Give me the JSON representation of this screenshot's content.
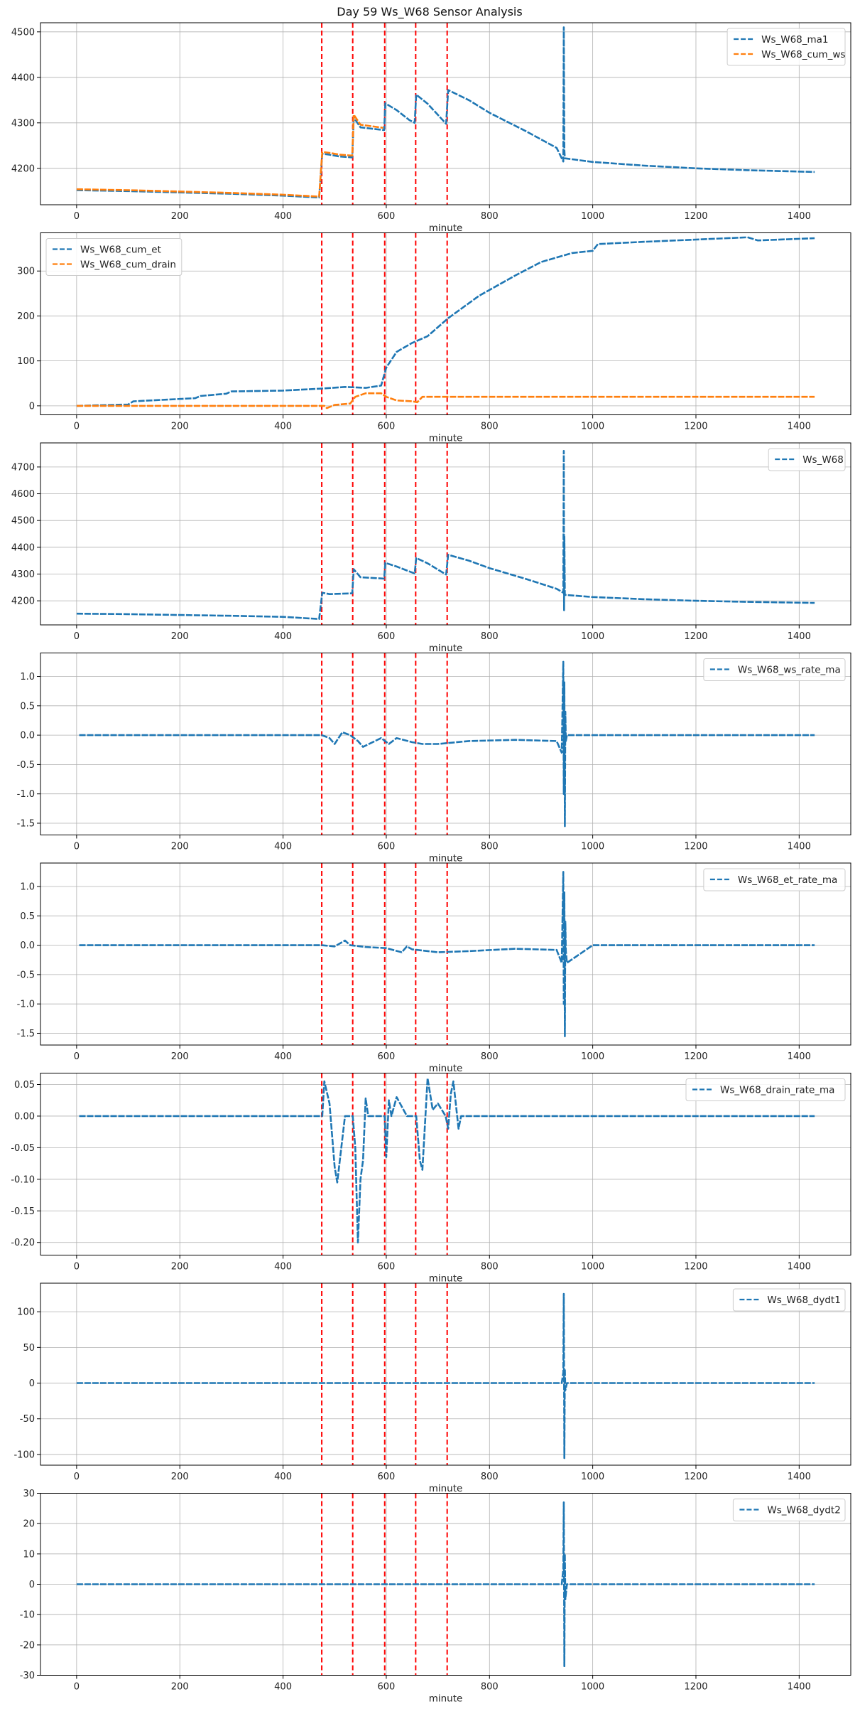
{
  "title": "Day 59 Ws_W68 Sensor Analysis",
  "colors": {
    "blue": "#1f77b4",
    "orange": "#ff7f0e",
    "event": "#ff0000",
    "grid": "#b0b0b0"
  },
  "chart_data": [
    {
      "type": "line",
      "xlabel": "minute",
      "xlim": [
        -70,
        1500
      ],
      "xticks": [
        0,
        200,
        400,
        600,
        800,
        1000,
        1200,
        1400
      ],
      "ylim": [
        4120,
        4520
      ],
      "yticks": [
        4200,
        4300,
        4400,
        4500
      ],
      "grid": true,
      "legend": "top-right",
      "event_lines": [
        475,
        535,
        597,
        657,
        718
      ],
      "series": [
        {
          "name": "Ws_W68_ma1",
          "color": "#1f77b4",
          "x": [
            0,
            100,
            200,
            300,
            400,
            470,
            476,
            490,
            510,
            534,
            537,
            550,
            596,
            598,
            620,
            645,
            655,
            658,
            680,
            716,
            720,
            760,
            800,
            870,
            930,
            943,
            944,
            944.5,
            945,
            946,
            960,
            1000,
            1100,
            1200,
            1300,
            1430
          ],
          "y": [
            4152,
            4150,
            4147,
            4144,
            4140,
            4136,
            4232,
            4230,
            4226,
            4224,
            4312,
            4290,
            4284,
            4343,
            4328,
            4306,
            4300,
            4362,
            4342,
            4298,
            4372,
            4350,
            4322,
            4282,
            4245,
            4215,
            4510,
            4360,
            4240,
            4222,
            4220,
            4214,
            4206,
            4200,
            4196,
            4192
          ]
        },
        {
          "name": "Ws_W68_cum_ws",
          "color": "#ff7f0e",
          "x": [
            0,
            100,
            200,
            300,
            400,
            470,
            476,
            490,
            510,
            534,
            537,
            550,
            594
          ],
          "y": [
            4154,
            4152,
            4149,
            4146,
            4142,
            4138,
            4236,
            4234,
            4230,
            4228,
            4318,
            4296,
            4289
          ]
        }
      ]
    },
    {
      "type": "line",
      "xlabel": "minute",
      "xlim": [
        -70,
        1500
      ],
      "xticks": [
        0,
        200,
        400,
        600,
        800,
        1000,
        1200,
        1400
      ],
      "ylim": [
        -20,
        385
      ],
      "yticks": [
        0,
        100,
        200,
        300
      ],
      "grid": true,
      "legend": "top-left",
      "event_lines": [
        475,
        535,
        597,
        657,
        718
      ],
      "series": [
        {
          "name": "Ws_W68_cum_et",
          "color": "#1f77b4",
          "x": [
            0,
            100,
            110,
            230,
            240,
            290,
            300,
            400,
            470,
            520,
            560,
            590,
            600,
            620,
            650,
            680,
            720,
            780,
            850,
            900,
            960,
            1000,
            1010,
            1100,
            1200,
            1300,
            1320,
            1430
          ],
          "y": [
            0,
            3,
            10,
            17,
            22,
            27,
            32,
            34,
            38,
            42,
            40,
            45,
            85,
            120,
            140,
            155,
            195,
            245,
            290,
            320,
            340,
            345,
            360,
            365,
            370,
            375,
            368,
            373
          ]
        },
        {
          "name": "Ws_W68_cum_drain",
          "color": "#ff7f0e",
          "x": [
            0,
            470,
            480,
            485,
            500,
            530,
            540,
            560,
            590,
            600,
            620,
            650,
            660,
            670,
            700,
            720,
            1430
          ],
          "y": [
            0,
            0,
            0,
            -5,
            2,
            5,
            20,
            28,
            28,
            20,
            12,
            10,
            8,
            20,
            20,
            20,
            20
          ]
        }
      ]
    },
    {
      "type": "line",
      "xlabel": "minute",
      "xlim": [
        -70,
        1500
      ],
      "xticks": [
        0,
        200,
        400,
        600,
        800,
        1000,
        1200,
        1400
      ],
      "ylim": [
        4110,
        4790
      ],
      "yticks": [
        4200,
        4300,
        4400,
        4500,
        4600,
        4700
      ],
      "grid": true,
      "legend": "top-right",
      "event_lines": [
        475,
        535,
        597,
        657,
        718
      ],
      "series": [
        {
          "name": "Ws_W68",
          "color": "#1f77b4",
          "x": [
            0,
            100,
            200,
            300,
            400,
            470,
            476,
            490,
            534,
            537,
            550,
            596,
            598,
            620,
            655,
            658,
            680,
            716,
            720,
            760,
            800,
            870,
            930,
            943,
            944,
            944.5,
            945,
            946,
            960,
            1000,
            1100,
            1200,
            1300,
            1430
          ],
          "y": [
            4152,
            4150,
            4147,
            4144,
            4140,
            4132,
            4230,
            4225,
            4228,
            4318,
            4288,
            4283,
            4342,
            4328,
            4302,
            4360,
            4340,
            4298,
            4372,
            4350,
            4322,
            4282,
            4245,
            4230,
            4760,
            4165,
            4440,
            4222,
            4220,
            4214,
            4206,
            4200,
            4196,
            4192
          ]
        }
      ]
    },
    {
      "type": "line",
      "xlabel": "minute",
      "xlim": [
        -70,
        1500
      ],
      "xticks": [
        0,
        200,
        400,
        600,
        800,
        1000,
        1200,
        1400
      ],
      "ylim": [
        -1.7,
        1.4
      ],
      "yticks": [
        -1.5,
        -1.0,
        -0.5,
        0.0,
        0.5,
        1.0
      ],
      "grid": true,
      "legend": "top-right",
      "event_lines": [
        475,
        535,
        597,
        657,
        718
      ],
      "series": [
        {
          "name": "Ws_W68_ws_rate_ma",
          "color": "#1f77b4",
          "x": [
            5,
            200,
            400,
            475,
            490,
            500,
            515,
            530,
            545,
            555,
            590,
            605,
            620,
            650,
            670,
            700,
            760,
            850,
            930,
            940,
            943,
            944,
            945,
            946,
            947,
            948,
            950,
            960,
            1100,
            1300,
            1430
          ],
          "y": [
            0,
            0,
            0,
            0,
            -0.05,
            -0.15,
            0.05,
            0,
            -0.1,
            -0.2,
            -0.05,
            -0.15,
            -0.05,
            -0.12,
            -0.15,
            -0.15,
            -0.1,
            -0.08,
            -0.1,
            -0.3,
            1.25,
            -1.0,
            0.9,
            -1.55,
            0.4,
            -0.1,
            0,
            0,
            0,
            0,
            0
          ]
        }
      ]
    },
    {
      "type": "line",
      "xlabel": "minute",
      "xlim": [
        -70,
        1500
      ],
      "xticks": [
        0,
        200,
        400,
        600,
        800,
        1000,
        1200,
        1400
      ],
      "ylim": [
        -1.7,
        1.4
      ],
      "yticks": [
        -1.5,
        -1.0,
        -0.5,
        0.0,
        0.5,
        1.0
      ],
      "grid": true,
      "legend": "top-right",
      "event_lines": [
        475,
        535,
        597,
        657,
        718
      ],
      "series": [
        {
          "name": "Ws_W68_et_rate_ma",
          "color": "#1f77b4",
          "x": [
            5,
            200,
            400,
            475,
            500,
            520,
            530,
            560,
            600,
            630,
            640,
            650,
            700,
            760,
            850,
            930,
            940,
            943,
            944,
            945,
            946,
            947,
            948,
            950,
            1000,
            1100,
            1300,
            1430
          ],
          "y": [
            0,
            0,
            0,
            0,
            -0.02,
            0.08,
            0,
            -0.03,
            -0.05,
            -0.12,
            -0.02,
            -0.07,
            -0.12,
            -0.1,
            -0.06,
            -0.08,
            -0.3,
            1.25,
            -1.0,
            0.9,
            -1.55,
            0.4,
            -0.1,
            -0.3,
            0,
            0,
            0,
            0
          ]
        }
      ]
    },
    {
      "type": "line",
      "xlabel": "minute",
      "xlim": [
        -70,
        1500
      ],
      "xticks": [
        0,
        200,
        400,
        600,
        800,
        1000,
        1200,
        1400
      ],
      "ylim": [
        -0.22,
        0.068
      ],
      "yticks": [
        -0.2,
        -0.15,
        -0.1,
        -0.05,
        0.0,
        0.05
      ],
      "grid": true,
      "legend": "top-right",
      "event_lines": [
        475,
        535,
        597,
        657,
        718
      ],
      "series": [
        {
          "name": "Ws_W68_drain_rate_ma",
          "color": "#1f77b4",
          "x": [
            5,
            300,
            470,
            476,
            480,
            490,
            500,
            505,
            520,
            535,
            540,
            545,
            550,
            555,
            560,
            565,
            575,
            590,
            597,
            600,
            605,
            610,
            620,
            640,
            655,
            658,
            665,
            670,
            680,
            690,
            700,
            715,
            720,
            725,
            730,
            740,
            745,
            760,
            900,
            1200,
            1430
          ],
          "y": [
            0,
            0,
            0,
            0,
            0.055,
            0.02,
            -0.08,
            -0.105,
            0,
            0,
            -0.05,
            -0.2,
            -0.1,
            -0.07,
            0.028,
            0,
            0,
            0,
            0,
            -0.065,
            0.025,
            0,
            0.03,
            0,
            0,
            0,
            -0.07,
            -0.085,
            0.06,
            0.01,
            0.02,
            0,
            -0.02,
            0.035,
            0.055,
            -0.02,
            0,
            0,
            0,
            0,
            0
          ]
        }
      ]
    },
    {
      "type": "line",
      "xlabel": "minute",
      "xlim": [
        -70,
        1500
      ],
      "xticks": [
        0,
        200,
        400,
        600,
        800,
        1000,
        1200,
        1400
      ],
      "ylim": [
        -115,
        140
      ],
      "yticks": [
        -100,
        -50,
        0,
        50,
        100
      ],
      "grid": true,
      "legend": "top-right",
      "event_lines": [
        475,
        535,
        597,
        657,
        718
      ],
      "series": [
        {
          "name": "Ws_W68_dydt1",
          "color": "#1f77b4",
          "x": [
            0,
            300,
            600,
            900,
            940,
            943,
            944,
            945,
            946,
            947,
            950,
            1200,
            1430
          ],
          "y": [
            0,
            0,
            0,
            0,
            0,
            15,
            125,
            -105,
            20,
            -10,
            0,
            0,
            0
          ]
        }
      ]
    },
    {
      "type": "line",
      "xlabel": "minute",
      "xlim": [
        -70,
        1500
      ],
      "xticks": [
        0,
        200,
        400,
        600,
        800,
        1000,
        1200,
        1400
      ],
      "ylim": [
        -30,
        30
      ],
      "yticks": [
        -30,
        -20,
        -10,
        0,
        10,
        20,
        30
      ],
      "grid": true,
      "legend": "top-right",
      "event_lines": [
        475,
        535,
        597,
        657,
        718
      ],
      "series": [
        {
          "name": "Ws_W68_dydt2",
          "color": "#1f77b4",
          "x": [
            0,
            300,
            600,
            900,
            940,
            943,
            944,
            945,
            946,
            947,
            950,
            1200,
            1430
          ],
          "y": [
            0,
            0,
            0,
            0,
            0,
            5,
            27,
            -27,
            10,
            -5,
            0,
            0,
            0
          ]
        }
      ]
    }
  ]
}
